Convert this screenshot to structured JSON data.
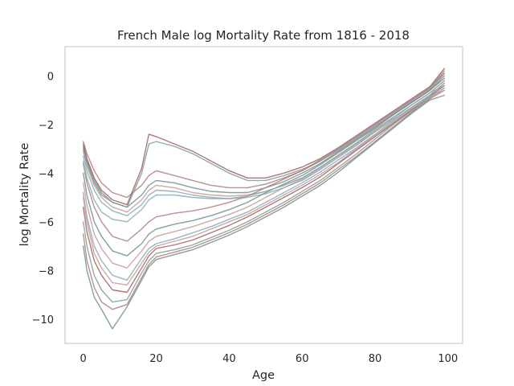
{
  "chart_data": {
    "type": "line",
    "title": "French Male log Mortality Rate from 1816 - 2018",
    "xlabel": "Age",
    "ylabel": "log Mortality Rate",
    "xlim": [
      -5,
      104
    ],
    "ylim": [
      -11,
      1.2
    ],
    "xticks": [
      0,
      20,
      40,
      60,
      80,
      100
    ],
    "yticks": [
      0,
      -2,
      -4,
      -6,
      -8,
      -10
    ],
    "xtick_labels": [
      "0",
      "20",
      "40",
      "60",
      "80",
      "100"
    ],
    "ytick_labels": [
      "0",
      "−2",
      "−4",
      "−6",
      "−8",
      "−10"
    ],
    "grid": false,
    "legend": "none",
    "years": [
      1816,
      2018
    ],
    "colors": [
      "#b07d7b",
      "#6f8f8f",
      "#c49a96",
      "#8aa9b5",
      "#a0625c",
      "#7d9c98"
    ],
    "x": [
      0,
      1,
      3,
      5,
      8,
      12,
      16,
      18,
      20,
      25,
      30,
      35,
      40,
      45,
      50,
      55,
      60,
      65,
      70,
      75,
      80,
      85,
      90,
      95,
      99
    ],
    "series": [
      {
        "values": [
          -2.7,
          -3.2,
          -3.9,
          -4.4,
          -4.8,
          -5.0,
          -4.5,
          -4.1,
          -3.9,
          -4.1,
          -4.3,
          -4.5,
          -4.6,
          -4.6,
          -4.45,
          -4.2,
          -3.9,
          -3.5,
          -3.0,
          -2.5,
          -2.0,
          -1.5,
          -1.0,
          -0.5,
          0.2
        ]
      },
      {
        "values": [
          -2.9,
          -3.5,
          -4.3,
          -4.8,
          -5.2,
          -5.4,
          -4.9,
          -4.5,
          -4.3,
          -4.4,
          -4.6,
          -4.75,
          -4.8,
          -4.8,
          -4.6,
          -4.35,
          -4.0,
          -3.6,
          -3.1,
          -2.6,
          -2.1,
          -1.6,
          -1.1,
          -0.6,
          0.0
        ]
      },
      {
        "values": [
          -3.1,
          -3.7,
          -4.5,
          -5.0,
          -5.4,
          -5.6,
          -5.1,
          -4.7,
          -4.5,
          -4.6,
          -4.8,
          -4.9,
          -4.95,
          -4.9,
          -4.75,
          -4.5,
          -4.2,
          -3.75,
          -3.25,
          -2.75,
          -2.2,
          -1.7,
          -1.2,
          -0.7,
          -0.2
        ]
      },
      {
        "values": [
          -3.3,
          -3.9,
          -4.7,
          -5.2,
          -5.55,
          -5.75,
          -5.3,
          -4.9,
          -4.7,
          -4.75,
          -4.9,
          -5.0,
          -5.05,
          -5.0,
          -4.85,
          -4.6,
          -4.3,
          -3.85,
          -3.35,
          -2.85,
          -2.3,
          -1.8,
          -1.3,
          -0.8,
          -0.3
        ]
      },
      {
        "values": [
          -2.8,
          -3.4,
          -4.2,
          -4.7,
          -5.1,
          -5.3,
          -3.8,
          -2.4,
          -2.5,
          -2.8,
          -3.1,
          -3.5,
          -3.9,
          -4.2,
          -4.2,
          -4.0,
          -3.75,
          -3.4,
          -2.95,
          -2.45,
          -1.95,
          -1.45,
          -0.95,
          -0.45,
          0.3
        ]
      },
      {
        "values": [
          -3.0,
          -3.6,
          -4.4,
          -4.9,
          -5.2,
          -5.4,
          -4.0,
          -2.8,
          -2.7,
          -2.9,
          -3.2,
          -3.6,
          -4.0,
          -4.3,
          -4.3,
          -4.1,
          -3.85,
          -3.5,
          -3.05,
          -2.55,
          -2.05,
          -1.55,
          -1.05,
          -0.55,
          0.1
        ]
      },
      {
        "values": [
          -3.6,
          -4.4,
          -5.4,
          -6.0,
          -6.6,
          -6.8,
          -6.3,
          -6.0,
          -5.8,
          -5.65,
          -5.55,
          -5.4,
          -5.2,
          -4.95,
          -4.6,
          -4.25,
          -3.9,
          -3.45,
          -2.95,
          -2.45,
          -1.95,
          -1.45,
          -0.95,
          -0.45,
          0.1
        ]
      },
      {
        "values": [
          -4.0,
          -4.9,
          -6.0,
          -6.6,
          -7.2,
          -7.4,
          -6.9,
          -6.5,
          -6.3,
          -6.1,
          -5.95,
          -5.75,
          -5.5,
          -5.2,
          -4.8,
          -4.45,
          -4.1,
          -3.65,
          -3.15,
          -2.65,
          -2.15,
          -1.6,
          -1.1,
          -0.6,
          -0.1
        ]
      },
      {
        "values": [
          -4.4,
          -5.3,
          -6.5,
          -7.1,
          -7.7,
          -7.9,
          -7.2,
          -6.8,
          -6.6,
          -6.4,
          -6.2,
          -5.95,
          -5.7,
          -5.4,
          -5.0,
          -4.6,
          -4.25,
          -3.8,
          -3.3,
          -2.8,
          -2.3,
          -1.75,
          -1.2,
          -0.7,
          -0.2
        ]
      },
      {
        "values": [
          -4.8,
          -5.8,
          -7.0,
          -7.6,
          -8.2,
          -8.4,
          -7.5,
          -7.1,
          -6.9,
          -6.7,
          -6.45,
          -6.2,
          -5.9,
          -5.6,
          -5.2,
          -4.8,
          -4.4,
          -3.95,
          -3.45,
          -2.95,
          -2.4,
          -1.85,
          -1.3,
          -0.8,
          -0.3
        ]
      },
      {
        "values": [
          -5.4,
          -6.4,
          -7.6,
          -8.2,
          -8.8,
          -8.9,
          -7.9,
          -7.4,
          -7.1,
          -6.95,
          -6.75,
          -6.45,
          -6.15,
          -5.8,
          -5.4,
          -5.0,
          -4.6,
          -4.15,
          -3.6,
          -3.05,
          -2.5,
          -1.95,
          -1.4,
          -0.85,
          -0.4
        ]
      },
      {
        "values": [
          -6.0,
          -7.0,
          -8.2,
          -8.8,
          -9.3,
          -9.2,
          -8.1,
          -7.6,
          -7.3,
          -7.15,
          -6.95,
          -6.65,
          -6.35,
          -6.0,
          -5.6,
          -5.2,
          -4.75,
          -4.3,
          -3.75,
          -3.2,
          -2.6,
          -2.0,
          -1.45,
          -0.9,
          -0.5
        ]
      },
      {
        "values": [
          -6.5,
          -7.6,
          -8.7,
          -9.3,
          -9.6,
          -9.4,
          -8.3,
          -7.75,
          -7.45,
          -7.25,
          -7.05,
          -6.75,
          -6.45,
          -6.1,
          -5.7,
          -5.3,
          -4.85,
          -4.4,
          -3.85,
          -3.3,
          -2.7,
          -2.1,
          -1.5,
          -0.95,
          -0.6
        ]
      },
      {
        "values": [
          -7.0,
          -8.0,
          -9.1,
          -9.6,
          -10.4,
          -9.5,
          -8.4,
          -7.85,
          -7.55,
          -7.35,
          -7.15,
          -6.85,
          -6.55,
          -6.2,
          -5.8,
          -5.4,
          -4.95,
          -4.5,
          -3.95,
          -3.35,
          -2.75,
          -2.15,
          -1.55,
          -1.0,
          -0.8
        ]
      },
      {
        "values": [
          -5.0,
          -6.0,
          -7.3,
          -7.9,
          -8.5,
          -8.6,
          -7.7,
          -7.25,
          -7.0,
          -6.8,
          -6.6,
          -6.3,
          -6.0,
          -5.7,
          -5.3,
          -4.9,
          -4.5,
          -4.05,
          -3.55,
          -3.0,
          -2.45,
          -1.9,
          -1.35,
          -0.85,
          -0.6
        ]
      },
      {
        "values": [
          -3.5,
          -4.2,
          -5.1,
          -5.6,
          -5.9,
          -6.0,
          -5.5,
          -5.1,
          -4.9,
          -4.9,
          -5.0,
          -5.05,
          -5.05,
          -4.95,
          -4.75,
          -4.5,
          -4.2,
          -3.75,
          -3.25,
          -2.75,
          -2.25,
          -1.7,
          -1.2,
          -0.7,
          -0.4
        ]
      }
    ]
  }
}
